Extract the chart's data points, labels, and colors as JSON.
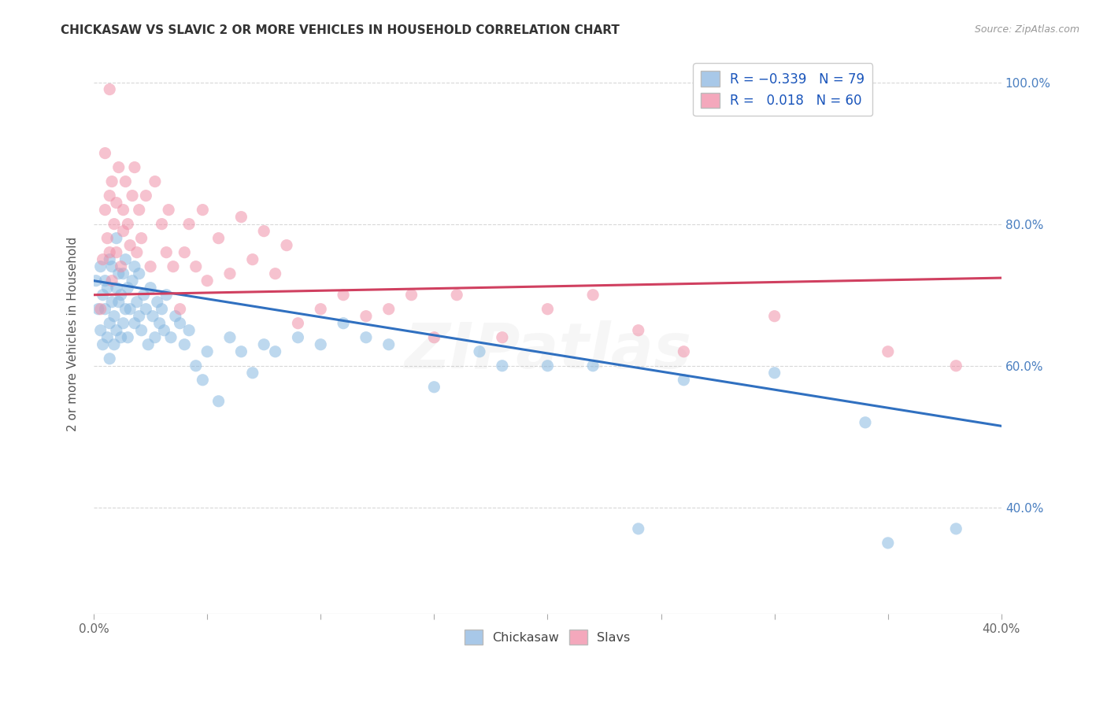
{
  "title": "CHICKASAW VS SLAVIC 2 OR MORE VEHICLES IN HOUSEHOLD CORRELATION CHART",
  "source": "Source: ZipAtlas.com",
  "ylabel_label": "2 or more Vehicles in Household",
  "x_min": 0.0,
  "x_max": 0.4,
  "y_min": 0.25,
  "y_max": 1.04,
  "x_ticks": [
    0.0,
    0.05,
    0.1,
    0.15,
    0.2,
    0.25,
    0.3,
    0.35,
    0.4
  ],
  "y_ticks": [
    0.4,
    0.6,
    0.8,
    1.0
  ],
  "y_tick_labels": [
    "40.0%",
    "60.0%",
    "80.0%",
    "100.0%"
  ],
  "legend_color1": "#a8c8e8",
  "legend_color2": "#f4a8bc",
  "scatter_color1": "#88b8e0",
  "scatter_color2": "#f090a8",
  "line_color1": "#3070c0",
  "line_color2": "#d04060",
  "background_color": "#ffffff",
  "grid_color": "#d8d8d8",
  "title_color": "#333333",
  "source_color": "#999999",
  "right_tick_color": "#4a7fc0",
  "chickasaw_line_x": [
    0.0,
    0.4
  ],
  "chickasaw_line_y": [
    0.72,
    0.515
  ],
  "slavic_line_x": [
    0.0,
    0.4
  ],
  "slavic_line_y": [
    0.7,
    0.724
  ],
  "marker_size": 120,
  "marker_alpha": 0.55,
  "watermark_text": "ZIPatlas",
  "watermark_alpha": 0.1,
  "watermark_color": "#b0b0b0",
  "chickasaw_x": [
    0.001,
    0.002,
    0.003,
    0.003,
    0.004,
    0.004,
    0.005,
    0.005,
    0.006,
    0.006,
    0.007,
    0.007,
    0.007,
    0.008,
    0.008,
    0.009,
    0.009,
    0.01,
    0.01,
    0.01,
    0.011,
    0.011,
    0.012,
    0.012,
    0.013,
    0.013,
    0.014,
    0.014,
    0.015,
    0.015,
    0.016,
    0.017,
    0.018,
    0.018,
    0.019,
    0.02,
    0.02,
    0.021,
    0.022,
    0.023,
    0.024,
    0.025,
    0.026,
    0.027,
    0.028,
    0.029,
    0.03,
    0.031,
    0.032,
    0.034,
    0.036,
    0.038,
    0.04,
    0.042,
    0.045,
    0.048,
    0.05,
    0.055,
    0.06,
    0.065,
    0.07,
    0.075,
    0.08,
    0.09,
    0.1,
    0.11,
    0.12,
    0.13,
    0.15,
    0.17,
    0.18,
    0.2,
    0.22,
    0.24,
    0.26,
    0.3,
    0.34,
    0.35,
    0.38
  ],
  "chickasaw_y": [
    0.72,
    0.68,
    0.74,
    0.65,
    0.7,
    0.63,
    0.68,
    0.72,
    0.64,
    0.71,
    0.66,
    0.75,
    0.61,
    0.69,
    0.74,
    0.67,
    0.63,
    0.71,
    0.65,
    0.78,
    0.69,
    0.73,
    0.64,
    0.7,
    0.66,
    0.73,
    0.68,
    0.75,
    0.71,
    0.64,
    0.68,
    0.72,
    0.66,
    0.74,
    0.69,
    0.67,
    0.73,
    0.65,
    0.7,
    0.68,
    0.63,
    0.71,
    0.67,
    0.64,
    0.69,
    0.66,
    0.68,
    0.65,
    0.7,
    0.64,
    0.67,
    0.66,
    0.63,
    0.65,
    0.6,
    0.58,
    0.62,
    0.55,
    0.64,
    0.62,
    0.59,
    0.63,
    0.62,
    0.64,
    0.63,
    0.66,
    0.64,
    0.63,
    0.57,
    0.62,
    0.6,
    0.6,
    0.6,
    0.37,
    0.58,
    0.59,
    0.52,
    0.35,
    0.37
  ],
  "slavic_x": [
    0.003,
    0.004,
    0.005,
    0.005,
    0.006,
    0.007,
    0.007,
    0.008,
    0.008,
    0.009,
    0.01,
    0.01,
    0.011,
    0.012,
    0.013,
    0.013,
    0.014,
    0.015,
    0.016,
    0.017,
    0.018,
    0.019,
    0.02,
    0.021,
    0.023,
    0.025,
    0.027,
    0.03,
    0.032,
    0.033,
    0.035,
    0.038,
    0.04,
    0.042,
    0.045,
    0.048,
    0.05,
    0.055,
    0.06,
    0.065,
    0.07,
    0.075,
    0.08,
    0.085,
    0.09,
    0.1,
    0.11,
    0.12,
    0.13,
    0.14,
    0.15,
    0.16,
    0.18,
    0.2,
    0.22,
    0.24,
    0.26,
    0.3,
    0.35,
    0.38
  ],
  "slavic_y": [
    0.68,
    0.75,
    0.82,
    0.9,
    0.78,
    0.84,
    0.76,
    0.86,
    0.72,
    0.8,
    0.76,
    0.83,
    0.88,
    0.74,
    0.82,
    0.79,
    0.86,
    0.8,
    0.77,
    0.84,
    0.88,
    0.76,
    0.82,
    0.78,
    0.84,
    0.74,
    0.86,
    0.8,
    0.76,
    0.82,
    0.74,
    0.68,
    0.76,
    0.8,
    0.74,
    0.82,
    0.72,
    0.78,
    0.73,
    0.81,
    0.75,
    0.79,
    0.73,
    0.77,
    0.66,
    0.68,
    0.7,
    0.67,
    0.68,
    0.7,
    0.64,
    0.7,
    0.64,
    0.68,
    0.7,
    0.65,
    0.62,
    0.67,
    0.62,
    0.6
  ],
  "slavic_high_x": [
    0.007
  ],
  "slavic_high_y": [
    0.99
  ]
}
